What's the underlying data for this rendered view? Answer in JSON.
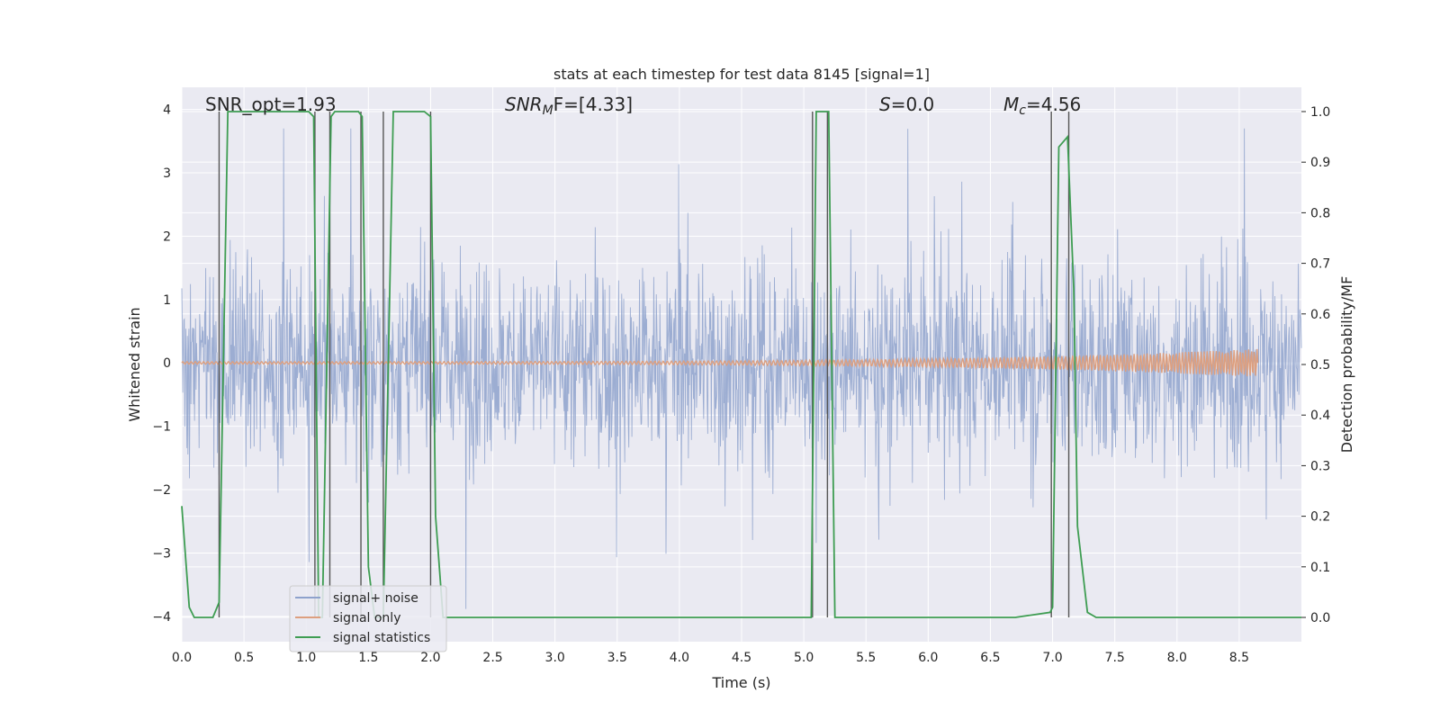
{
  "chart_data": {
    "type": "line",
    "title": "stats at each timestep for test data 8145 [signal=1]",
    "xlabel": "Time (s)",
    "ylabel": "Whitened strain",
    "ylabel_right": "Detection probability/MF",
    "xlim": [
      0.0,
      9.0
    ],
    "ylim": [
      -4.4,
      4.35
    ],
    "ylim_right": [
      -0.048,
      1.048
    ],
    "xticks": [
      "0.0",
      "0.5",
      "1.0",
      "1.5",
      "2.0",
      "2.5",
      "3.0",
      "3.5",
      "4.0",
      "4.5",
      "5.0",
      "5.5",
      "6.0",
      "6.5",
      "7.0",
      "7.5",
      "8.0",
      "8.5"
    ],
    "yticks_left": [
      "4",
      "3",
      "2",
      "1",
      "0",
      "−1",
      "−2",
      "−3",
      "−4"
    ],
    "yticks_right": [
      "1.0",
      "0.9",
      "0.8",
      "0.7",
      "0.6",
      "0.5",
      "0.4",
      "0.3",
      "0.2",
      "0.1",
      "0.0"
    ],
    "grid": true,
    "legend_position": "lower-left",
    "annotations": {
      "snr_opt": "SNR_opt=1.93",
      "snr_mf_main": "SNR",
      "snr_mf_sub": "M",
      "snr_mf_rest": "F=[4.33]",
      "s_main": "S",
      "s_rest": "=0.0",
      "mc_main": "M",
      "mc_sub": "c",
      "mc_rest": "=4.56"
    },
    "series": [
      {
        "name": "signal+ noise",
        "color": "#8ea2cc",
        "description_values": "noise band approx ±1.6 with spikes to ±3.7"
      },
      {
        "name": "signal only",
        "color": "#dd9f7f",
        "x_start": 0.0,
        "x_end": 8.65,
        "amplitude_end": 0.2
      },
      {
        "name": "signal statistics",
        "color": "#3e9d52",
        "axis": "right",
        "x": [
          0.0,
          0.06,
          0.1,
          0.25,
          0.3,
          0.37,
          0.42,
          1.02,
          1.06,
          1.1,
          1.13,
          1.2,
          1.23,
          1.28,
          1.42,
          1.45,
          1.5,
          1.55,
          1.62,
          1.7,
          1.95,
          2.0,
          2.04,
          2.1,
          2.2,
          3.0,
          4.0,
          5.0,
          5.06,
          5.1,
          5.13,
          5.2,
          5.25,
          5.3,
          6.0,
          6.7,
          6.98,
          7.0,
          7.05,
          7.12,
          7.17,
          7.2,
          7.28,
          7.35,
          8.0,
          9.0
        ],
        "values": [
          0.22,
          0.02,
          0.0,
          0.0,
          0.03,
          1.0,
          1.0,
          1.0,
          0.99,
          0.0,
          0.0,
          0.99,
          1.0,
          1.0,
          1.0,
          0.99,
          0.1,
          0.0,
          0.0,
          1.0,
          1.0,
          0.99,
          0.2,
          0.0,
          0.0,
          0.0,
          0.0,
          0.0,
          0.0,
          1.0,
          1.0,
          1.0,
          0.0,
          0.0,
          0.0,
          0.0,
          0.01,
          0.02,
          0.93,
          0.95,
          0.65,
          0.18,
          0.01,
          0.0,
          0.0,
          0.0
        ]
      }
    ],
    "detection_markers_x": [
      0.3,
      1.07,
      1.19,
      1.44,
      1.62,
      2.0,
      5.07,
      5.19,
      6.99,
      7.13
    ],
    "colors": {
      "plot_background": "#eaeaf2",
      "grid": "#ffffff",
      "marker_line": "#555555"
    }
  }
}
